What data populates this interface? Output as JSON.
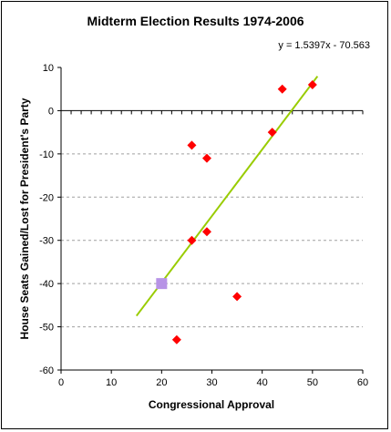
{
  "chart_data": {
    "type": "scatter",
    "title": "Midterm Election Results 1974-2006",
    "xlabel": "Congressional Approval",
    "ylabel": "House Seats Gained/Lost for President's Party",
    "xlim": [
      0,
      60
    ],
    "ylim": [
      -60,
      10
    ],
    "xticks": [
      0,
      10,
      20,
      30,
      40,
      50,
      60
    ],
    "yticks": [
      10,
      0,
      -10,
      -20,
      -30,
      -40,
      -50,
      -60
    ],
    "grid": "horizontal dashed",
    "legend": "none",
    "points": [
      {
        "x": 26,
        "y": -8
      },
      {
        "x": 29,
        "y": -11
      },
      {
        "x": 26,
        "y": -30
      },
      {
        "x": 29,
        "y": -28
      },
      {
        "x": 23,
        "y": -53
      },
      {
        "x": 35,
        "y": -43
      },
      {
        "x": 42,
        "y": -5
      },
      {
        "x": 44,
        "y": 5
      },
      {
        "x": 50,
        "y": 6
      }
    ],
    "highlight_point": {
      "x": 20,
      "y": -40
    },
    "trendline": {
      "equation": "y = 1.5397x - 70.563",
      "slope": 1.5397,
      "intercept": -70.563,
      "x_start": 15,
      "x_end": 51
    },
    "colors": {
      "points": "#ff0000",
      "highlight": "#b793e6",
      "trendline": "#99cc00",
      "grid": "#a0a0a0"
    }
  }
}
